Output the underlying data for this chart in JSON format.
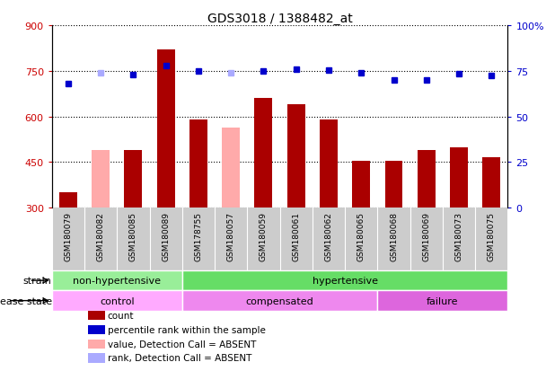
{
  "title": "GDS3018 / 1388482_at",
  "samples": [
    "GSM180079",
    "GSM180082",
    "GSM180085",
    "GSM180089",
    "GSM178755",
    "GSM180057",
    "GSM180059",
    "GSM180061",
    "GSM180062",
    "GSM180065",
    "GSM180068",
    "GSM180069",
    "GSM180073",
    "GSM180075"
  ],
  "bar_values": [
    350,
    490,
    490,
    820,
    590,
    565,
    660,
    640,
    590,
    455,
    455,
    490,
    500,
    465
  ],
  "bar_absent": [
    false,
    true,
    false,
    false,
    false,
    true,
    false,
    false,
    false,
    false,
    false,
    false,
    false,
    false
  ],
  "percentile_values": [
    68,
    74,
    73,
    78,
    75,
    74,
    75,
    76,
    75.5,
    74,
    70,
    70,
    73.5,
    72.5
  ],
  "percentile_absent": [
    false,
    true,
    false,
    false,
    false,
    true,
    false,
    false,
    false,
    false,
    false,
    false,
    false,
    false
  ],
  "bar_color_normal": "#aa0000",
  "bar_color_absent": "#ffaaaa",
  "dot_color_normal": "#0000cc",
  "dot_color_absent": "#aaaaff",
  "ylim_left": [
    300,
    900
  ],
  "ylim_right": [
    0,
    100
  ],
  "yticks_left": [
    300,
    450,
    600,
    750,
    900
  ],
  "yticks_right": [
    0,
    25,
    50,
    75,
    100
  ],
  "strain_groups": [
    {
      "label": "non-hypertensive",
      "start": 0,
      "end": 4,
      "color": "#99ee99"
    },
    {
      "label": "hypertensive",
      "start": 4,
      "end": 14,
      "color": "#66dd66"
    }
  ],
  "disease_groups": [
    {
      "label": "control",
      "start": 0,
      "end": 4,
      "color": "#ffaaff"
    },
    {
      "label": "compensated",
      "start": 4,
      "end": 10,
      "color": "#ee88ee"
    },
    {
      "label": "failure",
      "start": 10,
      "end": 14,
      "color": "#dd66dd"
    }
  ],
  "legend_items": [
    {
      "label": "count",
      "color": "#aa0000"
    },
    {
      "label": "percentile rank within the sample",
      "color": "#0000cc"
    },
    {
      "label": "value, Detection Call = ABSENT",
      "color": "#ffaaaa"
    },
    {
      "label": "rank, Detection Call = ABSENT",
      "color": "#aaaaff"
    }
  ],
  "background_color": "#ffffff"
}
